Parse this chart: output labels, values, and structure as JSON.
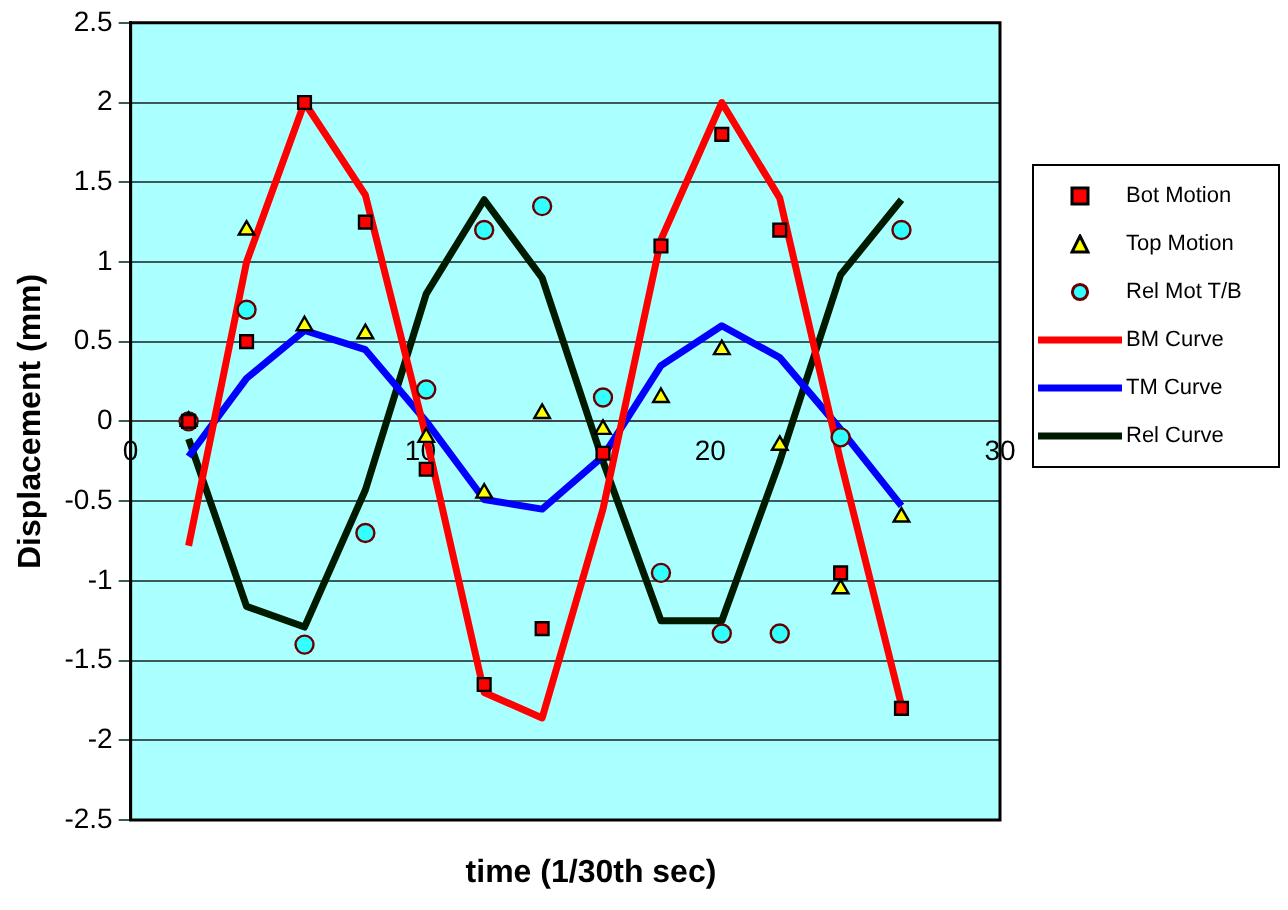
{
  "chart_data": {
    "type": "scatter",
    "xlabel": "time (1/30th sec)",
    "ylabel": "Displacement (mm)",
    "xlim": [
      0,
      30
    ],
    "xticks": [
      0,
      10,
      20,
      30
    ],
    "ylim": [
      -2.5,
      2.5
    ],
    "yticks": [
      -2.5,
      -2,
      -1.5,
      -1,
      -0.5,
      0,
      0.5,
      1,
      1.5,
      2,
      2.5
    ],
    "grid": "y",
    "legend": "right",
    "x": [
      2,
      4,
      6,
      8.1,
      10.2,
      12.2,
      14.2,
      16.3,
      18.3,
      20.4,
      22.4,
      24.5,
      26.6
    ],
    "series": [
      {
        "name": "Bot Motion",
        "marker": "square",
        "color": "#ff0000",
        "values": [
          0,
          0.5,
          2,
          1.25,
          -0.3,
          -1.65,
          -1.3,
          -0.2,
          1.1,
          1.8,
          1.2,
          -0.95,
          -1.8
        ]
      },
      {
        "name": "Top Motion",
        "marker": "triangle",
        "color": "#ffff00",
        "values": [
          0,
          1.2,
          0.6,
          0.55,
          -0.1,
          -0.45,
          0.05,
          -0.05,
          0.15,
          0.45,
          -0.15,
          -1.05,
          -0.6
        ]
      },
      {
        "name": "Rel Mot T/B",
        "marker": "circle",
        "color": "#33ffff",
        "values": [
          0,
          0.7,
          -1.4,
          -0.7,
          0.2,
          1.2,
          1.35,
          0.15,
          -0.95,
          -1.33,
          -1.33,
          -0.1,
          1.2
        ]
      },
      {
        "name": "BM Curve",
        "type": "line",
        "marker": "none",
        "color": "#ff0000",
        "values": [
          -0.78,
          1.0,
          2.0,
          1.42,
          -0.1,
          -1.7,
          -1.86,
          -0.55,
          1.14,
          2.0,
          1.4,
          -0.25,
          -1.78
        ]
      },
      {
        "name": "TM Curve",
        "type": "line",
        "marker": "none",
        "color": "#0000ff",
        "values": [
          -0.22,
          0.27,
          0.57,
          0.45,
          0,
          -0.49,
          -0.55,
          -0.22,
          0.35,
          0.6,
          0.4,
          -0.05,
          -0.53
        ]
      },
      {
        "name": "Rel Curve",
        "type": "line",
        "marker": "none",
        "color": "#001a00",
        "values": [
          -0.11,
          -1.16,
          -1.29,
          -0.43,
          0.8,
          1.39,
          0.9,
          -0.25,
          -1.25,
          -1.25,
          -0.25,
          0.92,
          1.39
        ]
      }
    ]
  }
}
